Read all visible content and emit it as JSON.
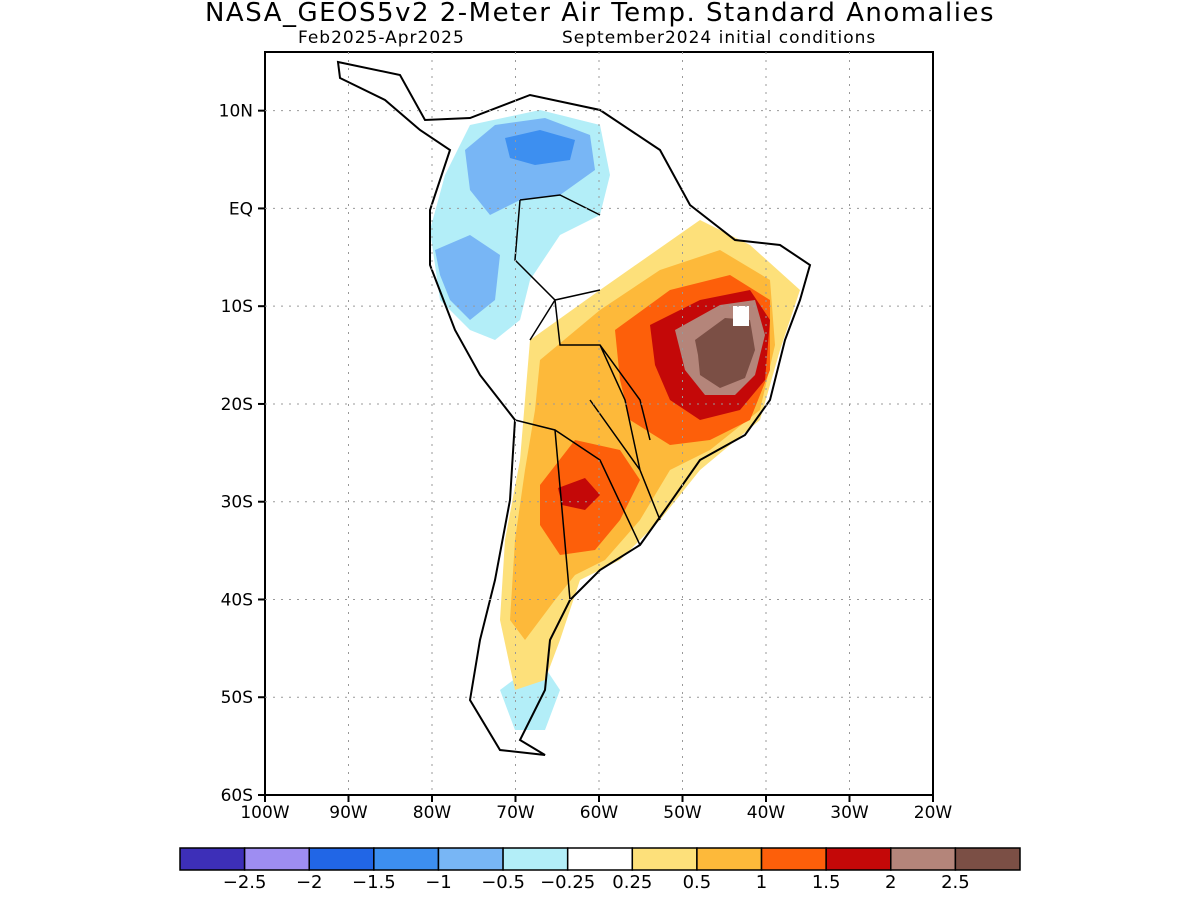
{
  "title": "NASA_GEOS5v2 2-Meter Air Temp. Standard Anomalies",
  "subtitle_period": "Feb2025-Apr2025",
  "subtitle_init": "September2024 initial conditions",
  "axes": {
    "lon_labels": [
      "100W",
      "90W",
      "80W",
      "70W",
      "60W",
      "50W",
      "40W",
      "30W",
      "20W"
    ],
    "lat_labels": [
      "10N",
      "EQ",
      "10S",
      "20S",
      "30S",
      "40S",
      "50S",
      "60S"
    ],
    "lon_range": [
      -100,
      -20
    ],
    "lat_range": [
      -60,
      16
    ],
    "grid": "dotted"
  },
  "colorbar": {
    "colors": [
      "#3d2fb8",
      "#9e8df2",
      "#2166e6",
      "#3d8ff0",
      "#78b6f5",
      "#b3eef8",
      "#ffffff",
      "#fde07a",
      "#fdb93a",
      "#fd5f0a",
      "#c40808",
      "#b4857a",
      "#7b4f45"
    ],
    "labels": [
      "−2.5",
      "−2",
      "−1.5",
      "−1",
      "−0.5",
      "−0.25",
      "0.25",
      "0.5",
      "1",
      "1.5",
      "2",
      "2.5"
    ]
  },
  "chart_data": {
    "type": "heatmap",
    "variable": "2-Meter Air Temp. Standard Anomalies",
    "title": "NASA_GEOS5v2 2-Meter Air Temp. Standard Anomalies",
    "xlim": [
      -100,
      -20
    ],
    "ylim": [
      -60,
      16
    ],
    "levels": [
      -2.5,
      -2,
      -1.5,
      -1,
      -0.5,
      -0.25,
      0.25,
      0.5,
      1,
      1.5,
      2,
      2.5
    ]
  }
}
